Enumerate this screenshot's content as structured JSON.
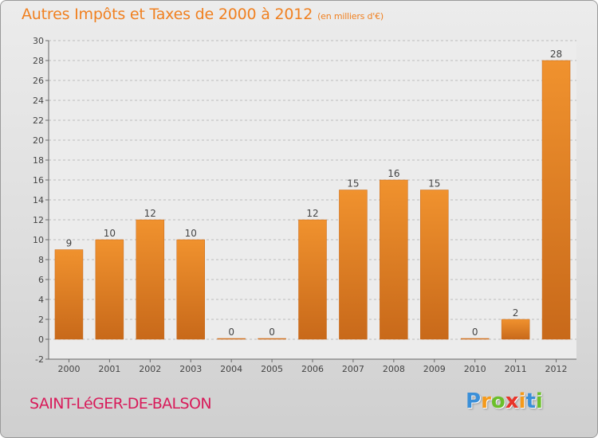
{
  "chart_data": {
    "type": "bar",
    "title": "Autres Impôts et Taxes de 2000 à 2012",
    "unit_label": "(en milliers d'€)",
    "categories": [
      "2000",
      "2001",
      "2002",
      "2003",
      "2004",
      "2005",
      "2006",
      "2007",
      "2008",
      "2009",
      "2010",
      "2011",
      "2012"
    ],
    "values": [
      9,
      10,
      12,
      10,
      0,
      0,
      12,
      15,
      16,
      15,
      0,
      2,
      28
    ],
    "ylim": [
      -2,
      30
    ],
    "yticks": [
      -2,
      0,
      2,
      4,
      6,
      8,
      10,
      12,
      14,
      16,
      18,
      20,
      22,
      24,
      26,
      28,
      30
    ],
    "grid": true,
    "bar_color": "#f0922e",
    "bar_color_dark": "#c8691a"
  },
  "footer": {
    "place": "SAINT-LéGER-DE-BALSON",
    "logo_letters": [
      "P",
      "r",
      "o",
      "x",
      "i",
      "t",
      "i"
    ],
    "logo_colors": [
      "#3a8fd8",
      "#f59a1a",
      "#6bbf2a",
      "#e8342a",
      "#f59a1a",
      "#3a8fd8",
      "#6bbf2a"
    ]
  }
}
